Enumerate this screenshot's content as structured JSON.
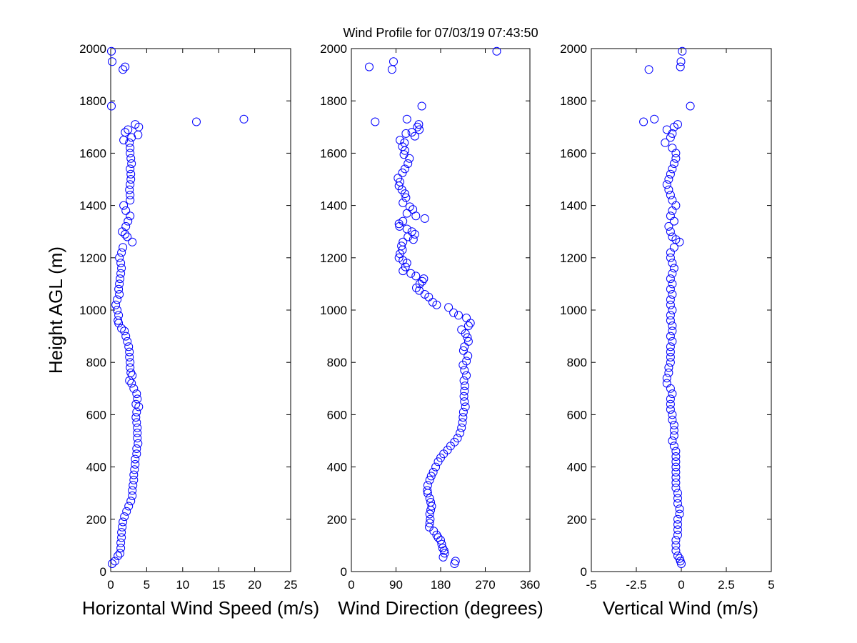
{
  "figure": {
    "title": "Wind Profile for  07/03/19 07:43:50",
    "marker_color": "#0000ff"
  },
  "chart_data": [
    {
      "type": "scatter",
      "xlabel": "Horizontal Wind Speed (m/s)",
      "ylabel": "Height AGL (m)",
      "xlim": [
        0,
        25
      ],
      "ylim": [
        0,
        2000
      ],
      "xticks": [
        0,
        5,
        10,
        15,
        20,
        25
      ],
      "xtick_labels": [
        "0",
        "5",
        "10",
        "15",
        "20",
        "25"
      ],
      "yticks": [
        0,
        200,
        400,
        600,
        800,
        1000,
        1200,
        1400,
        1600,
        1800,
        2000
      ],
      "ytick_labels": [
        "0",
        "200",
        "400",
        "600",
        "800",
        "1000",
        "1200",
        "1400",
        "1600",
        "1800",
        "2000"
      ],
      "grid": false,
      "marker": "circle",
      "points": [
        [
          0.1,
          1990
        ],
        [
          0.2,
          1950
        ],
        [
          2.0,
          1930
        ],
        [
          1.7,
          1920
        ],
        [
          0.1,
          1780
        ],
        [
          18.5,
          1730
        ],
        [
          11.9,
          1720
        ],
        [
          3.9,
          1700
        ],
        [
          3.4,
          1710
        ],
        [
          2.4,
          1690
        ],
        [
          3.8,
          1670
        ],
        [
          2.0,
          1680
        ],
        [
          2.9,
          1660
        ],
        [
          1.8,
          1650
        ],
        [
          2.6,
          1640
        ],
        [
          2.7,
          1620
        ],
        [
          2.7,
          1600
        ],
        [
          2.8,
          1580
        ],
        [
          2.9,
          1560
        ],
        [
          2.7,
          1540
        ],
        [
          2.8,
          1520
        ],
        [
          2.8,
          1500
        ],
        [
          2.7,
          1480
        ],
        [
          2.6,
          1460
        ],
        [
          2.7,
          1440
        ],
        [
          2.7,
          1420
        ],
        [
          1.8,
          1400
        ],
        [
          2.1,
          1380
        ],
        [
          2.7,
          1360
        ],
        [
          2.4,
          1340
        ],
        [
          2.1,
          1320
        ],
        [
          1.6,
          1300
        ],
        [
          2.0,
          1290
        ],
        [
          2.3,
          1280
        ],
        [
          3.0,
          1260
        ],
        [
          1.7,
          1240
        ],
        [
          1.5,
          1220
        ],
        [
          1.2,
          1200
        ],
        [
          1.4,
          1180
        ],
        [
          1.5,
          1160
        ],
        [
          1.4,
          1140
        ],
        [
          1.3,
          1120
        ],
        [
          1.2,
          1100
        ],
        [
          1.1,
          1080
        ],
        [
          1.2,
          1060
        ],
        [
          0.9,
          1040
        ],
        [
          0.7,
          1020
        ],
        [
          0.9,
          1000
        ],
        [
          1.1,
          980
        ],
        [
          1.0,
          960
        ],
        [
          1.1,
          950
        ],
        [
          1.5,
          930
        ],
        [
          1.9,
          920
        ],
        [
          2.1,
          900
        ],
        [
          2.3,
          880
        ],
        [
          2.5,
          860
        ],
        [
          2.6,
          840
        ],
        [
          2.6,
          820
        ],
        [
          2.7,
          800
        ],
        [
          2.7,
          780
        ],
        [
          2.8,
          760
        ],
        [
          3.0,
          750
        ],
        [
          2.6,
          730
        ],
        [
          2.9,
          720
        ],
        [
          3.2,
          700
        ],
        [
          3.6,
          680
        ],
        [
          3.7,
          660
        ],
        [
          3.5,
          640
        ],
        [
          3.9,
          630
        ],
        [
          3.6,
          610
        ],
        [
          3.5,
          590
        ],
        [
          3.6,
          570
        ],
        [
          3.7,
          550
        ],
        [
          3.7,
          530
        ],
        [
          3.7,
          510
        ],
        [
          3.8,
          490
        ],
        [
          3.6,
          470
        ],
        [
          3.6,
          450
        ],
        [
          3.4,
          430
        ],
        [
          3.4,
          410
        ],
        [
          3.3,
          390
        ],
        [
          3.2,
          370
        ],
        [
          3.2,
          350
        ],
        [
          3.1,
          330
        ],
        [
          3.0,
          310
        ],
        [
          3.0,
          290
        ],
        [
          2.8,
          270
        ],
        [
          2.5,
          250
        ],
        [
          2.2,
          230
        ],
        [
          1.9,
          210
        ],
        [
          1.7,
          190
        ],
        [
          1.6,
          170
        ],
        [
          1.5,
          150
        ],
        [
          1.5,
          130
        ],
        [
          1.4,
          110
        ],
        [
          1.4,
          90
        ],
        [
          1.3,
          70
        ],
        [
          1.0,
          60
        ],
        [
          0.6,
          40
        ],
        [
          0.2,
          30
        ]
      ]
    },
    {
      "type": "scatter",
      "xlabel": "Wind Direction (degrees)",
      "ylabel": "",
      "xlim": [
        0,
        360
      ],
      "ylim": [
        0,
        2000
      ],
      "xticks": [
        0,
        90,
        180,
        270,
        360
      ],
      "xtick_labels": [
        "0",
        "90",
        "180",
        "270",
        "360"
      ],
      "yticks": [
        0,
        200,
        400,
        600,
        800,
        1000,
        1200,
        1400,
        1600,
        1800,
        2000
      ],
      "ytick_labels": [
        "0",
        "200",
        "400",
        "600",
        "800",
        "1000",
        "1200",
        "1400",
        "1600",
        "1800",
        "2000"
      ],
      "grid": false,
      "marker": "circle",
      "points": [
        [
          293,
          1990
        ],
        [
          85,
          1950
        ],
        [
          36,
          1930
        ],
        [
          82,
          1920
        ],
        [
          142,
          1780
        ],
        [
          112,
          1730
        ],
        [
          48,
          1720
        ],
        [
          136,
          1710
        ],
        [
          133,
          1700
        ],
        [
          137,
          1690
        ],
        [
          122,
          1680
        ],
        [
          110,
          1675
        ],
        [
          128,
          1665
        ],
        [
          98,
          1650
        ],
        [
          107,
          1640
        ],
        [
          103,
          1625
        ],
        [
          108,
          1610
        ],
        [
          106,
          1595
        ],
        [
          117,
          1580
        ],
        [
          114,
          1560
        ],
        [
          108,
          1540
        ],
        [
          103,
          1525
        ],
        [
          94,
          1505
        ],
        [
          98,
          1490
        ],
        [
          96,
          1475
        ],
        [
          102,
          1460
        ],
        [
          108,
          1445
        ],
        [
          110,
          1430
        ],
        [
          104,
          1410
        ],
        [
          118,
          1395
        ],
        [
          124,
          1385
        ],
        [
          112,
          1370
        ],
        [
          130,
          1360
        ],
        [
          148,
          1350
        ],
        [
          104,
          1340
        ],
        [
          96,
          1330
        ],
        [
          97,
          1320
        ],
        [
          112,
          1310
        ],
        [
          122,
          1300
        ],
        [
          128,
          1290
        ],
        [
          114,
          1280
        ],
        [
          125,
          1270
        ],
        [
          104,
          1260
        ],
        [
          101,
          1245
        ],
        [
          103,
          1230
        ],
        [
          98,
          1215
        ],
        [
          96,
          1200
        ],
        [
          104,
          1190
        ],
        [
          112,
          1180
        ],
        [
          109,
          1165
        ],
        [
          104,
          1150
        ],
        [
          120,
          1140
        ],
        [
          130,
          1130
        ],
        [
          146,
          1120
        ],
        [
          143,
          1110
        ],
        [
          138,
          1100
        ],
        [
          131,
          1085
        ],
        [
          137,
          1075
        ],
        [
          148,
          1060
        ],
        [
          156,
          1050
        ],
        [
          164,
          1030
        ],
        [
          172,
          1020
        ],
        [
          196,
          1010
        ],
        [
          206,
          990
        ],
        [
          216,
          980
        ],
        [
          232,
          970
        ],
        [
          240,
          950
        ],
        [
          236,
          940
        ],
        [
          222,
          925
        ],
        [
          230,
          910
        ],
        [
          234,
          895
        ],
        [
          236,
          880
        ],
        [
          228,
          860
        ],
        [
          226,
          845
        ],
        [
          235,
          825
        ],
        [
          232,
          805
        ],
        [
          225,
          790
        ],
        [
          228,
          770
        ],
        [
          232,
          750
        ],
        [
          227,
          730
        ],
        [
          229,
          710
        ],
        [
          228,
          690
        ],
        [
          227,
          670
        ],
        [
          228,
          650
        ],
        [
          230,
          630
        ],
        [
          226,
          610
        ],
        [
          225,
          590
        ],
        [
          224,
          570
        ],
        [
          222,
          550
        ],
        [
          219,
          530
        ],
        [
          214,
          510
        ],
        [
          208,
          495
        ],
        [
          200,
          480
        ],
        [
          194,
          465
        ],
        [
          186,
          450
        ],
        [
          180,
          435
        ],
        [
          175,
          420
        ],
        [
          170,
          400
        ],
        [
          165,
          380
        ],
        [
          161,
          365
        ],
        [
          158,
          350
        ],
        [
          154,
          330
        ],
        [
          153,
          310
        ],
        [
          154,
          300
        ],
        [
          158,
          280
        ],
        [
          160,
          265
        ],
        [
          162,
          250
        ],
        [
          160,
          235
        ],
        [
          158,
          220
        ],
        [
          159,
          200
        ],
        [
          158,
          185
        ],
        [
          157,
          170
        ],
        [
          166,
          155
        ],
        [
          172,
          140
        ],
        [
          175,
          130
        ],
        [
          180,
          120
        ],
        [
          182,
          105
        ],
        [
          184,
          90
        ],
        [
          187,
          80
        ],
        [
          188,
          70
        ],
        [
          185,
          55
        ],
        [
          210,
          40
        ],
        [
          208,
          30
        ]
      ]
    },
    {
      "type": "scatter",
      "xlabel": "Vertical Wind (m/s)",
      "ylabel": "",
      "xlim": [
        -5,
        5
      ],
      "ylim": [
        0,
        2000
      ],
      "xticks": [
        -5,
        -2.5,
        0,
        2.5,
        5
      ],
      "xtick_labels": [
        "-5",
        "-2.5",
        "0",
        "2.5",
        "5"
      ],
      "yticks": [
        0,
        200,
        400,
        600,
        800,
        1000,
        1200,
        1400,
        1600,
        1800,
        2000
      ],
      "ytick_labels": [
        "0",
        "200",
        "400",
        "600",
        "800",
        "1000",
        "1200",
        "1400",
        "1600",
        "1800",
        "2000"
      ],
      "grid": false,
      "marker": "circle",
      "points": [
        [
          0.05,
          1990
        ],
        [
          -0.02,
          1950
        ],
        [
          -0.05,
          1930
        ],
        [
          -1.8,
          1920
        ],
        [
          0.5,
          1780
        ],
        [
          -1.5,
          1730
        ],
        [
          -2.1,
          1720
        ],
        [
          -0.2,
          1710
        ],
        [
          -0.4,
          1700
        ],
        [
          -0.8,
          1690
        ],
        [
          -0.5,
          1675
        ],
        [
          -0.6,
          1660
        ],
        [
          -0.9,
          1640
        ],
        [
          -0.5,
          1620
        ],
        [
          -0.3,
          1600
        ],
        [
          -0.3,
          1580
        ],
        [
          -0.4,
          1560
        ],
        [
          -0.5,
          1540
        ],
        [
          -0.6,
          1520
        ],
        [
          -0.7,
          1500
        ],
        [
          -0.8,
          1480
        ],
        [
          -0.7,
          1460
        ],
        [
          -0.6,
          1440
        ],
        [
          -0.5,
          1420
        ],
        [
          -0.3,
          1400
        ],
        [
          -0.5,
          1380
        ],
        [
          -0.6,
          1360
        ],
        [
          -0.4,
          1340
        ],
        [
          -0.7,
          1320
        ],
        [
          -0.6,
          1300
        ],
        [
          -0.5,
          1280
        ],
        [
          -0.3,
          1270
        ],
        [
          -0.1,
          1260
        ],
        [
          -0.4,
          1240
        ],
        [
          -0.6,
          1220
        ],
        [
          -0.6,
          1200
        ],
        [
          -0.5,
          1180
        ],
        [
          -0.4,
          1160
        ],
        [
          -0.5,
          1140
        ],
        [
          -0.6,
          1120
        ],
        [
          -0.5,
          1100
        ],
        [
          -0.6,
          1080
        ],
        [
          -0.5,
          1060
        ],
        [
          -0.6,
          1040
        ],
        [
          -0.6,
          1020
        ],
        [
          -0.5,
          1000
        ],
        [
          -0.6,
          980
        ],
        [
          -0.6,
          960
        ],
        [
          -0.5,
          940
        ],
        [
          -0.5,
          920
        ],
        [
          -0.6,
          900
        ],
        [
          -0.5,
          880
        ],
        [
          -0.6,
          860
        ],
        [
          -0.6,
          840
        ],
        [
          -0.6,
          820
        ],
        [
          -0.6,
          800
        ],
        [
          -0.7,
          780
        ],
        [
          -0.7,
          760
        ],
        [
          -0.8,
          740
        ],
        [
          -0.8,
          720
        ],
        [
          -0.6,
          700
        ],
        [
          -0.5,
          680
        ],
        [
          -0.6,
          660
        ],
        [
          -0.6,
          640
        ],
        [
          -0.6,
          620
        ],
        [
          -0.5,
          600
        ],
        [
          -0.5,
          580
        ],
        [
          -0.4,
          560
        ],
        [
          -0.4,
          540
        ],
        [
          -0.4,
          520
        ],
        [
          -0.5,
          500
        ],
        [
          -0.4,
          480
        ],
        [
          -0.3,
          460
        ],
        [
          -0.3,
          440
        ],
        [
          -0.3,
          420
        ],
        [
          -0.3,
          400
        ],
        [
          -0.3,
          380
        ],
        [
          -0.3,
          360
        ],
        [
          -0.3,
          340
        ],
        [
          -0.3,
          320
        ],
        [
          -0.2,
          300
        ],
        [
          -0.2,
          280
        ],
        [
          -0.2,
          260
        ],
        [
          -0.1,
          240
        ],
        [
          -0.1,
          220
        ],
        [
          -0.2,
          200
        ],
        [
          -0.2,
          180
        ],
        [
          -0.2,
          160
        ],
        [
          -0.2,
          140
        ],
        [
          -0.3,
          120
        ],
        [
          -0.3,
          100
        ],
        [
          -0.3,
          80
        ],
        [
          -0.2,
          60
        ],
        [
          -0.1,
          50
        ],
        [
          -0.05,
          40
        ],
        [
          0.0,
          30
        ]
      ]
    }
  ]
}
